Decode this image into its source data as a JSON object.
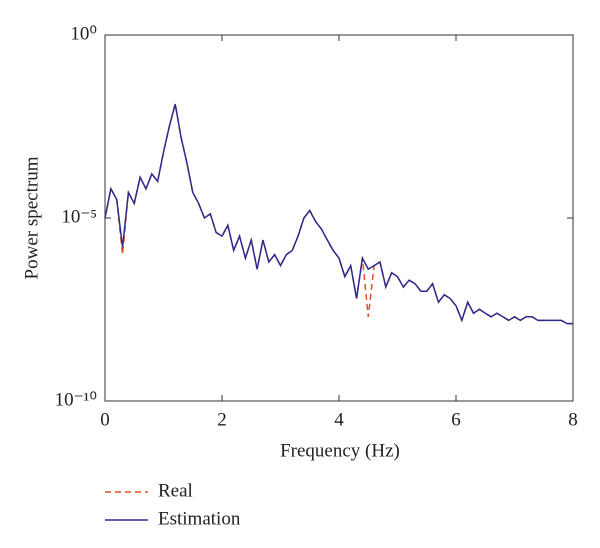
{
  "chart_data": {
    "type": "line",
    "xlabel": "Frequency (Hz)",
    "ylabel": "Power spectrum",
    "xlim": [
      0,
      8
    ],
    "xticks": [
      0,
      2,
      4,
      6,
      8
    ],
    "ylim": [
      1e-10,
      1
    ],
    "log_y": true,
    "yticks": [
      {
        "value": 1e-10,
        "label": "10⁻¹⁰"
      },
      {
        "value": 1e-05,
        "label": "10⁻⁵"
      },
      {
        "value": 1,
        "label": "10⁰"
      }
    ],
    "legend": "bottom",
    "x": [
      0,
      0.1,
      0.2,
      0.3,
      0.4,
      0.5,
      0.6,
      0.7,
      0.8,
      0.9,
      1,
      1.1,
      1.2,
      1.3,
      1.4,
      1.5,
      1.6,
      1.7,
      1.8,
      1.9,
      2,
      2.1,
      2.2,
      2.3,
      2.4,
      2.5,
      2.6,
      2.7,
      2.8,
      2.9,
      3,
      3.1,
      3.2,
      3.3,
      3.4,
      3.5,
      3.6,
      3.7,
      3.8,
      3.9,
      4,
      4.1,
      4.2,
      4.3,
      4.4,
      4.5,
      4.6,
      4.7,
      4.8,
      4.9,
      5,
      5.1,
      5.2,
      5.3,
      5.4,
      5.5,
      5.6,
      5.7,
      5.8,
      5.9,
      6,
      6.1,
      6.2,
      6.3,
      6.4,
      6.5,
      6.6,
      6.7,
      6.8,
      6.9,
      7,
      7.1,
      7.2,
      7.3,
      7.4,
      7.5,
      7.6,
      7.7,
      7.8,
      7.9,
      8
    ],
    "series": [
      {
        "name": "Real",
        "color": "#e0522a",
        "dash": true,
        "values": [
          1e-05,
          6.3e-05,
          3.2e-05,
          1e-06,
          5e-05,
          2.5e-05,
          0.00013,
          6.3e-05,
          0.00016,
          0.0001,
          0.00063,
          0.0032,
          0.013,
          0.0016,
          0.00032,
          5e-05,
          2.5e-05,
          1e-05,
          1.3e-05,
          4e-06,
          3.2e-06,
          6.3e-06,
          1.3e-06,
          3.2e-06,
          8e-07,
          2.5e-06,
          4e-07,
          2.5e-06,
          6.3e-07,
          1e-06,
          5e-07,
          1e-06,
          1.3e-06,
          3.2e-06,
          1e-05,
          1.6e-05,
          8e-06,
          5e-06,
          2.5e-06,
          1.3e-06,
          8e-07,
          2.5e-07,
          5e-07,
          6.3e-08,
          8e-07,
          2e-08,
          5e-07,
          6.3e-07,
          1.3e-07,
          3.2e-07,
          2.5e-07,
          1.3e-07,
          2e-07,
          1.6e-07,
          1e-07,
          1e-07,
          1.6e-07,
          5e-08,
          8e-08,
          6.3e-08,
          4e-08,
          1.6e-08,
          5e-08,
          2.5e-08,
          3.2e-08,
          2.5e-08,
          2e-08,
          2.5e-08,
          2e-08,
          1.6e-08,
          2e-08,
          1.6e-08,
          2e-08,
          2e-08,
          1.6e-08,
          1.6e-08,
          1.6e-08,
          1.6e-08,
          1.6e-08,
          1.3e-08,
          1.3e-08
        ]
      },
      {
        "name": "Estimation",
        "color": "#2e2a8c",
        "dash": false,
        "values": [
          1e-05,
          6.3e-05,
          3.2e-05,
          1.6e-06,
          5e-05,
          2.5e-05,
          0.00013,
          6.3e-05,
          0.00016,
          0.0001,
          0.00063,
          0.0032,
          0.013,
          0.0016,
          0.00032,
          5e-05,
          2.5e-05,
          1e-05,
          1.3e-05,
          4e-06,
          3.2e-06,
          6.3e-06,
          1.3e-06,
          3.2e-06,
          8e-07,
          2.5e-06,
          4e-07,
          2.5e-06,
          6.3e-07,
          1e-06,
          5e-07,
          1e-06,
          1.3e-06,
          3.2e-06,
          1e-05,
          1.6e-05,
          8e-06,
          5e-06,
          2.5e-06,
          1.3e-06,
          8e-07,
          2.5e-07,
          5e-07,
          6.3e-08,
          8e-07,
          4e-07,
          5e-07,
          6.3e-07,
          1.3e-07,
          3.2e-07,
          2.5e-07,
          1.3e-07,
          2e-07,
          1.6e-07,
          1e-07,
          1e-07,
          1.6e-07,
          5e-08,
          8e-08,
          6.3e-08,
          4e-08,
          1.6e-08,
          5e-08,
          2.5e-08,
          3.2e-08,
          2.5e-08,
          2e-08,
          2.5e-08,
          2e-08,
          1.6e-08,
          2e-08,
          1.6e-08,
          2e-08,
          2e-08,
          1.6e-08,
          1.6e-08,
          1.6e-08,
          1.6e-08,
          1.6e-08,
          1.3e-08,
          1.3e-08
        ]
      }
    ]
  }
}
